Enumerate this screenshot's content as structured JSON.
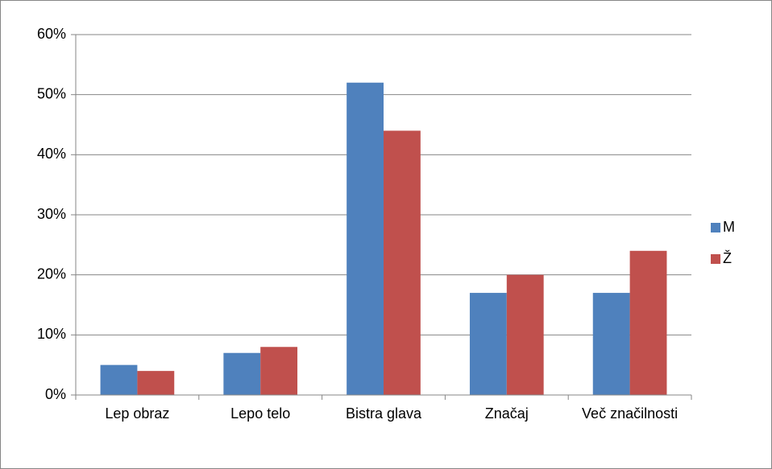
{
  "chart_data": {
    "type": "bar",
    "categories": [
      "Lep obraz",
      "Lepo telo",
      "Bistra glava",
      "Značaj",
      "Več značilnosti"
    ],
    "series": [
      {
        "name": "M",
        "color": "#4f81bd",
        "values": [
          5,
          7,
          52,
          17,
          17
        ]
      },
      {
        "name": "Ž",
        "color": "#c0504d",
        "values": [
          4,
          8,
          44,
          20,
          24
        ]
      }
    ],
    "ylim": [
      0,
      60
    ],
    "yticks": [
      {
        "value": 0,
        "label": "0%"
      },
      {
        "value": 10,
        "label": "10%"
      },
      {
        "value": 20,
        "label": "20%"
      },
      {
        "value": 30,
        "label": "30%"
      },
      {
        "value": 40,
        "label": "40%"
      },
      {
        "value": 50,
        "label": "50%"
      },
      {
        "value": 60,
        "label": "60%"
      }
    ],
    "grid": true,
    "legend": "right"
  }
}
